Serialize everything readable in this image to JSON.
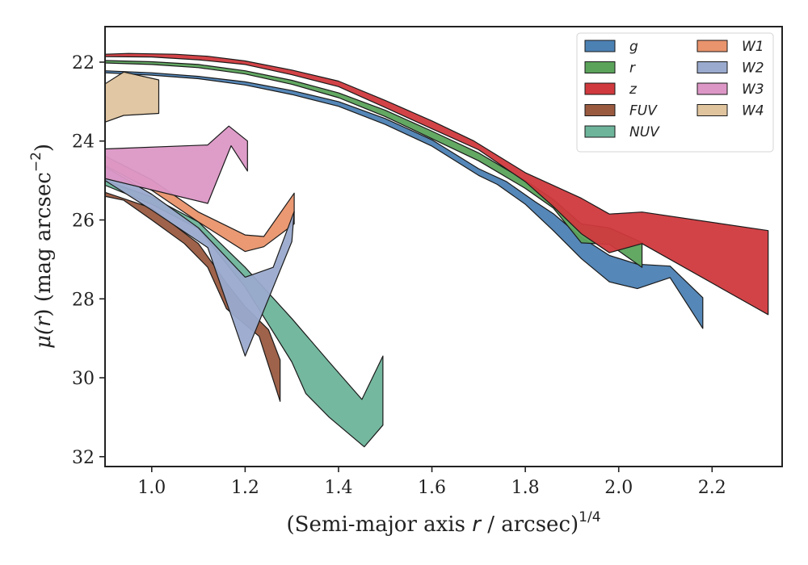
{
  "chart_data": {
    "type": "area",
    "title": "",
    "xlabel": "(Semi-major axis r / arcsec)",
    "xlabel_prefix": "(Semi-major axis ",
    "xlabel_var": "r",
    "xlabel_suffix": " / arcsec)",
    "xlabel_sup": "1/4",
    "ylabel": "μ(r) (mag arcsec−2)",
    "ylabel_mu": "μ(",
    "ylabel_var": "r",
    "ylabel_suffix": ") (mag arcsec",
    "ylabel_sup": "−2",
    "ylabel_close": ")",
    "xlim": [
      0.9,
      2.35
    ],
    "ylim": [
      32.25,
      21.1
    ],
    "y_inverted": true,
    "grid": false,
    "legend_position": "top-right",
    "xticks": [
      1.0,
      1.2,
      1.4,
      1.6,
      1.8,
      2.0,
      2.2
    ],
    "xtick_labels": [
      "1.0",
      "1.2",
      "1.4",
      "1.6",
      "1.8",
      "2.0",
      "2.2"
    ],
    "yticks": [
      22,
      24,
      26,
      28,
      30,
      32
    ],
    "ytick_labels": [
      "22",
      "24",
      "26",
      "28",
      "30",
      "32"
    ],
    "series": [
      {
        "name": "g",
        "color": "#4c81b4",
        "upper": [
          [
            0.9,
            22.22
          ],
          [
            1.0,
            22.27
          ],
          [
            1.1,
            22.36
          ],
          [
            1.2,
            22.5
          ],
          [
            1.3,
            22.72
          ],
          [
            1.4,
            23.0
          ],
          [
            1.5,
            23.43
          ],
          [
            1.6,
            23.97
          ],
          [
            1.7,
            24.7
          ],
          [
            1.76,
            25.03
          ],
          [
            1.82,
            25.53
          ],
          [
            1.86,
            25.84
          ],
          [
            1.92,
            26.44
          ],
          [
            1.98,
            26.9
          ],
          [
            2.04,
            27.12
          ],
          [
            2.11,
            27.17
          ],
          [
            2.18,
            27.97
          ]
        ],
        "lower": [
          [
            0.9,
            22.27
          ],
          [
            1.0,
            22.33
          ],
          [
            1.1,
            22.42
          ],
          [
            1.2,
            22.58
          ],
          [
            1.3,
            22.82
          ],
          [
            1.4,
            23.12
          ],
          [
            1.5,
            23.58
          ],
          [
            1.6,
            24.13
          ],
          [
            1.7,
            24.87
          ],
          [
            1.74,
            25.1
          ],
          [
            1.8,
            25.6
          ],
          [
            1.86,
            26.27
          ],
          [
            1.92,
            26.98
          ],
          [
            1.98,
            27.57
          ],
          [
            2.04,
            27.74
          ],
          [
            2.11,
            27.46
          ],
          [
            2.18,
            28.75
          ]
        ]
      },
      {
        "name": "r",
        "color": "#5ba35b",
        "upper": [
          [
            0.9,
            21.96
          ],
          [
            1.0,
            21.99
          ],
          [
            1.1,
            22.06
          ],
          [
            1.2,
            22.22
          ],
          [
            1.3,
            22.46
          ],
          [
            1.4,
            22.78
          ],
          [
            1.5,
            23.22
          ],
          [
            1.6,
            23.75
          ],
          [
            1.7,
            24.3
          ],
          [
            1.8,
            25.0
          ],
          [
            1.86,
            25.48
          ],
          [
            1.92,
            26.1
          ],
          [
            1.98,
            26.2
          ],
          [
            2.05,
            26.57
          ]
        ],
        "lower": [
          [
            0.9,
            22.02
          ],
          [
            1.0,
            22.06
          ],
          [
            1.1,
            22.14
          ],
          [
            1.2,
            22.3
          ],
          [
            1.3,
            22.56
          ],
          [
            1.4,
            22.9
          ],
          [
            1.5,
            23.38
          ],
          [
            1.6,
            23.94
          ],
          [
            1.7,
            24.5
          ],
          [
            1.8,
            25.2
          ],
          [
            1.86,
            25.7
          ],
          [
            1.92,
            26.58
          ],
          [
            1.98,
            26.62
          ],
          [
            2.05,
            27.2
          ]
        ]
      },
      {
        "name": "z",
        "color": "#d0393d",
        "upper": [
          [
            0.9,
            21.8
          ],
          [
            0.95,
            21.78
          ],
          [
            1.05,
            21.8
          ],
          [
            1.12,
            21.85
          ],
          [
            1.2,
            21.97
          ],
          [
            1.3,
            22.2
          ],
          [
            1.4,
            22.48
          ],
          [
            1.5,
            22.97
          ],
          [
            1.6,
            23.49
          ],
          [
            1.69,
            24.0
          ],
          [
            1.8,
            24.8
          ],
          [
            1.92,
            25.45
          ],
          [
            1.98,
            25.85
          ],
          [
            2.05,
            25.8
          ],
          [
            2.32,
            26.27
          ]
        ],
        "lower": [
          [
            0.9,
            21.86
          ],
          [
            1.0,
            21.87
          ],
          [
            1.1,
            21.94
          ],
          [
            1.2,
            22.06
          ],
          [
            1.3,
            22.32
          ],
          [
            1.4,
            22.62
          ],
          [
            1.5,
            23.15
          ],
          [
            1.6,
            23.69
          ],
          [
            1.7,
            24.22
          ],
          [
            1.8,
            25.03
          ],
          [
            1.86,
            25.66
          ],
          [
            1.92,
            26.35
          ],
          [
            1.98,
            26.83
          ],
          [
            2.05,
            26.6
          ],
          [
            2.32,
            28.4
          ]
        ]
      },
      {
        "name": "FUV",
        "color": "#9a5a40",
        "upper": [
          [
            0.9,
            25.3
          ],
          [
            1.0,
            25.7
          ],
          [
            1.1,
            26.6
          ],
          [
            1.16,
            27.6
          ],
          [
            1.2,
            28.2
          ],
          [
            1.25,
            28.78
          ],
          [
            1.275,
            29.55
          ]
        ],
        "lower": [
          [
            0.9,
            25.4
          ],
          [
            0.94,
            25.5
          ],
          [
            1.0,
            26.0
          ],
          [
            1.07,
            26.6
          ],
          [
            1.12,
            27.2
          ],
          [
            1.16,
            28.25
          ],
          [
            1.23,
            28.95
          ],
          [
            1.275,
            30.6
          ]
        ]
      },
      {
        "name": "NUV",
        "color": "#6db49a",
        "upper": [
          [
            0.9,
            25.0
          ],
          [
            1.0,
            25.42
          ],
          [
            1.1,
            26.05
          ],
          [
            1.2,
            27.2
          ],
          [
            1.3,
            28.5
          ],
          [
            1.38,
            29.6
          ],
          [
            1.45,
            30.55
          ],
          [
            1.495,
            29.45
          ]
        ],
        "lower": [
          [
            0.9,
            25.12
          ],
          [
            1.0,
            25.6
          ],
          [
            1.1,
            26.22
          ],
          [
            1.2,
            27.7
          ],
          [
            1.3,
            29.6
          ],
          [
            1.33,
            30.4
          ],
          [
            1.38,
            31.0
          ],
          [
            1.455,
            31.75
          ],
          [
            1.495,
            31.2
          ]
        ]
      },
      {
        "name": "W1",
        "color": "#e9946c",
        "upper": [
          [
            0.9,
            24.38
          ],
          [
            1.0,
            24.98
          ],
          [
            1.1,
            25.8
          ],
          [
            1.2,
            26.38
          ],
          [
            1.24,
            26.42
          ],
          [
            1.305,
            25.32
          ]
        ],
        "lower": [
          [
            0.9,
            24.62
          ],
          [
            1.0,
            25.25
          ],
          [
            1.1,
            26.05
          ],
          [
            1.2,
            26.8
          ],
          [
            1.24,
            26.68
          ],
          [
            1.305,
            26.1
          ]
        ]
      },
      {
        "name": "W2",
        "color": "#9aaace",
        "upper": [
          [
            0.9,
            24.65
          ],
          [
            1.0,
            25.35
          ],
          [
            1.1,
            26.2
          ],
          [
            1.2,
            27.45
          ],
          [
            1.26,
            27.2
          ],
          [
            1.305,
            25.78
          ]
        ],
        "lower": [
          [
            0.9,
            25.0
          ],
          [
            1.0,
            25.75
          ],
          [
            1.12,
            26.7
          ],
          [
            1.2,
            29.45
          ],
          [
            1.3,
            26.55
          ]
        ]
      },
      {
        "name": "W3",
        "color": "#dc97c6",
        "upper": [
          [
            0.9,
            24.2
          ],
          [
            1.12,
            24.1
          ],
          [
            1.165,
            23.62
          ],
          [
            1.205,
            24.0
          ]
        ],
        "lower": [
          [
            0.9,
            24.95
          ],
          [
            1.12,
            25.58
          ],
          [
            1.17,
            24.12
          ],
          [
            1.205,
            24.76
          ]
        ]
      },
      {
        "name": "W4",
        "color": "#dfc49e",
        "upper": [
          [
            0.9,
            22.55
          ],
          [
            0.94,
            22.25
          ],
          [
            1.015,
            22.45
          ]
        ],
        "lower": [
          [
            0.9,
            23.52
          ],
          [
            0.94,
            23.35
          ],
          [
            1.015,
            23.3
          ]
        ]
      }
    ]
  }
}
